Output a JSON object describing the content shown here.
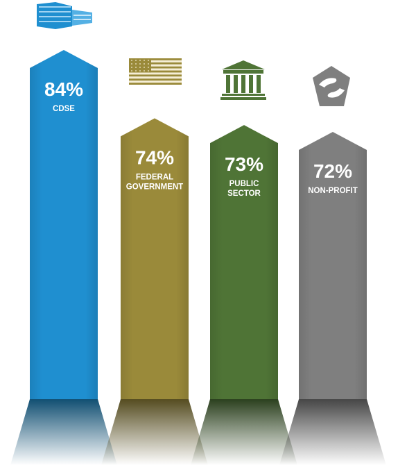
{
  "chart_data": {
    "type": "bar",
    "categories": [
      "CDSE",
      "FEDERAL GOVERNMENT",
      "PUBLIC SECTOR",
      "NON-PROFIT"
    ],
    "category_lines": [
      [
        "CDSE"
      ],
      [
        "FEDERAL",
        "GOVERNMENT"
      ],
      [
        "PUBLIC",
        "SECTOR"
      ],
      [
        "NON-PROFIT"
      ]
    ],
    "values": [
      84,
      74,
      73,
      72
    ],
    "value_labels": [
      "84%",
      "74%",
      "73%",
      "72%"
    ],
    "colors": [
      "#1f8fd0",
      "#9a8a3a",
      "#4f7436",
      "#7f7f7f"
    ],
    "icons": [
      "building-icon",
      "us-flag-icon",
      "government-building-icon",
      "hands-pentagon-icon"
    ],
    "title": "",
    "xlabel": "",
    "ylabel": "",
    "grid": false,
    "legend": "none"
  }
}
